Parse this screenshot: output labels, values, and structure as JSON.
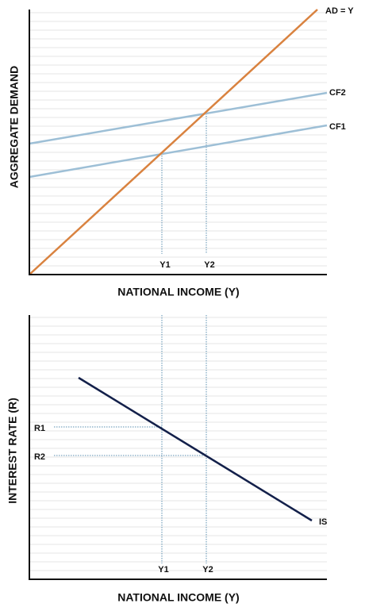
{
  "top": {
    "y_axis_title": "AGGREGATE DEMAND",
    "x_axis_title": "NATIONAL INCOME (Y)",
    "line_labels": [
      "AD = Y",
      "CF2",
      "CF1"
    ],
    "x_labels": [
      "Y1",
      "Y2"
    ]
  },
  "bottom": {
    "y_axis_title": "INTEREST RATE (R)",
    "x_axis_title": "NATIONAL INCOME (Y)",
    "y_labels": [
      "R1",
      "R2"
    ],
    "x_labels": [
      "Y1",
      "Y2"
    ],
    "curve_label": "IS"
  }
}
